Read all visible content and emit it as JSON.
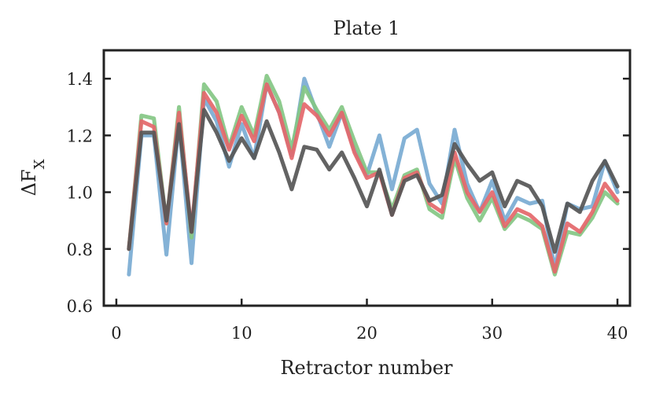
{
  "chart_data": {
    "type": "line",
    "title": "Plate 1",
    "xlabel": "Retractor number",
    "ylabel": "ΔF",
    "ylabel_subscript": "X",
    "xlim": [
      -1,
      41
    ],
    "ylim": [
      0.6,
      1.5
    ],
    "xticks": [
      0,
      10,
      20,
      30,
      40
    ],
    "xtick_labels": [
      "0",
      "10",
      "20",
      "30",
      "40"
    ],
    "yticks": [
      0.6,
      0.8,
      1.0,
      1.2,
      1.4
    ],
    "ytick_labels": [
      "0.6",
      "0.8",
      "1.0",
      "1.2",
      "1.4"
    ],
    "grid": false,
    "x": [
      1,
      2,
      3,
      4,
      5,
      6,
      7,
      8,
      9,
      10,
      11,
      12,
      13,
      14,
      15,
      16,
      17,
      18,
      19,
      20,
      21,
      22,
      23,
      24,
      25,
      26,
      27,
      28,
      29,
      30,
      31,
      32,
      33,
      34,
      35,
      36,
      37,
      38,
      39,
      40
    ],
    "series": [
      {
        "name": "blue",
        "color": "#7aabd3",
        "values": [
          0.71,
          1.2,
          1.2,
          0.78,
          1.25,
          0.75,
          1.33,
          1.25,
          1.09,
          1.24,
          1.12,
          1.38,
          1.28,
          1.13,
          1.4,
          1.28,
          1.16,
          1.28,
          1.15,
          1.06,
          1.2,
          1.01,
          1.19,
          1.22,
          1.03,
          0.96,
          1.22,
          1.03,
          0.93,
          1.04,
          0.9,
          0.98,
          0.96,
          0.97,
          0.73,
          0.96,
          0.94,
          0.95,
          1.11,
          1.0
        ]
      },
      {
        "name": "green",
        "color": "#84c784",
        "values": [
          0.8,
          1.27,
          1.26,
          0.89,
          1.3,
          0.84,
          1.38,
          1.32,
          1.16,
          1.3,
          1.2,
          1.41,
          1.32,
          1.15,
          1.37,
          1.29,
          1.22,
          1.3,
          1.18,
          1.07,
          1.07,
          0.94,
          1.06,
          1.08,
          0.94,
          0.91,
          1.12,
          0.98,
          0.9,
          0.98,
          0.87,
          0.92,
          0.9,
          0.87,
          0.71,
          0.86,
          0.85,
          0.91,
          1.0,
          0.96
        ]
      },
      {
        "name": "red",
        "color": "#e4676a",
        "values": [
          0.8,
          1.25,
          1.23,
          0.89,
          1.28,
          0.86,
          1.35,
          1.28,
          1.15,
          1.27,
          1.18,
          1.38,
          1.28,
          1.12,
          1.31,
          1.27,
          1.2,
          1.28,
          1.14,
          1.05,
          1.07,
          0.92,
          1.05,
          1.07,
          0.96,
          0.93,
          1.14,
          1.0,
          0.93,
          1.0,
          0.88,
          0.94,
          0.92,
          0.88,
          0.72,
          0.89,
          0.86,
          0.93,
          1.03,
          0.97
        ]
      },
      {
        "name": "dark-gray",
        "color": "#565656",
        "values": [
          0.8,
          1.21,
          1.21,
          0.9,
          1.24,
          0.86,
          1.29,
          1.21,
          1.11,
          1.19,
          1.12,
          1.25,
          1.14,
          1.01,
          1.16,
          1.15,
          1.08,
          1.14,
          1.05,
          0.95,
          1.08,
          0.92,
          1.04,
          1.06,
          0.97,
          0.99,
          1.17,
          1.1,
          1.04,
          1.07,
          0.95,
          1.04,
          1.02,
          0.95,
          0.79,
          0.96,
          0.93,
          1.04,
          1.11,
          1.02
        ]
      }
    ]
  }
}
